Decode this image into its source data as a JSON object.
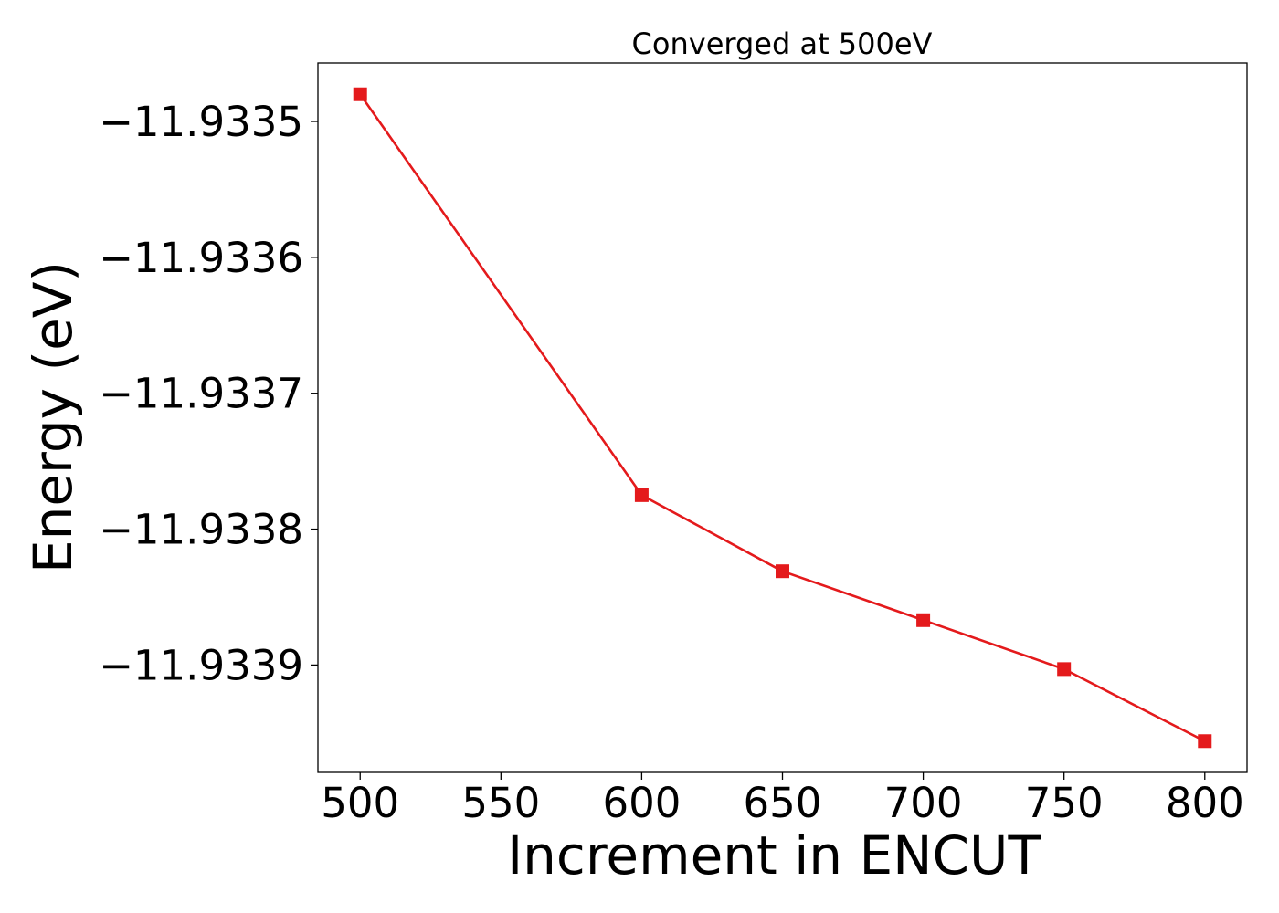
{
  "chart_data": {
    "type": "line",
    "title": "Converged at 500eV",
    "xlabel": "Increment in ENCUT",
    "ylabel": "Energy (eV)",
    "x": [
      500,
      600,
      650,
      700,
      750,
      800
    ],
    "series": [
      {
        "values": [
          -11.93348,
          -11.933775,
          -11.933831,
          -11.933867,
          -11.933903,
          -11.933956
        ],
        "color": "#e41a1c",
        "marker": "square"
      }
    ],
    "xticks": [
      500,
      550,
      600,
      650,
      700,
      750,
      800
    ],
    "xtick_labels": [
      "500",
      "550",
      "600",
      "650",
      "700",
      "750",
      "800"
    ],
    "yticks": [
      -11.9335,
      -11.9336,
      -11.9337,
      -11.9338,
      -11.9339
    ],
    "ytick_labels": [
      "−11.9335",
      "−11.9336",
      "−11.9337",
      "−11.9338",
      "−11.9339"
    ],
    "xlim": [
      485,
      815
    ],
    "ylim": [
      -11.933979,
      -11.933457
    ],
    "grid": false,
    "legend": false
  }
}
